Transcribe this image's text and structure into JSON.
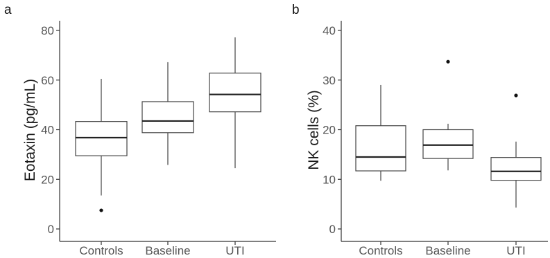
{
  "chart_data": [
    {
      "panel_label": "a",
      "type": "box",
      "ylabel": "Eotaxin (pg/mL)",
      "ylim": [
        0,
        80
      ],
      "yticks": [
        0,
        20,
        40,
        60,
        80
      ],
      "categories": [
        "Controls",
        "Baseline",
        "UTI"
      ],
      "boxes": [
        {
          "category": "Controls",
          "min": 13.5,
          "q1": 29.5,
          "median": 36.8,
          "q3": 43.3,
          "max": 60.5,
          "outliers": [
            7.5
          ]
        },
        {
          "category": "Baseline",
          "min": 25.8,
          "q1": 38.8,
          "median": 43.5,
          "q3": 51.3,
          "max": 67.2,
          "outliers": []
        },
        {
          "category": "UTI",
          "min": 24.5,
          "q1": 47.2,
          "median": 54.2,
          "q3": 62.8,
          "max": 77.2,
          "outliers": []
        }
      ]
    },
    {
      "panel_label": "b",
      "type": "box",
      "ylabel": "NK cells (%)",
      "ylim": [
        0,
        40
      ],
      "yticks": [
        0,
        10,
        20,
        30,
        40
      ],
      "categories": [
        "Controls",
        "Baseline",
        "UTI"
      ],
      "boxes": [
        {
          "category": "Controls",
          "min": 9.7,
          "q1": 11.7,
          "median": 14.5,
          "q3": 20.8,
          "max": 29.0,
          "outliers": []
        },
        {
          "category": "Baseline",
          "min": 11.8,
          "q1": 14.2,
          "median": 16.9,
          "q3": 20.0,
          "max": 21.2,
          "outliers": [
            33.7
          ]
        },
        {
          "category": "UTI",
          "min": 4.3,
          "q1": 9.8,
          "median": 11.6,
          "q3": 14.4,
          "max": 17.6,
          "outliers": [
            26.9
          ]
        }
      ]
    }
  ]
}
